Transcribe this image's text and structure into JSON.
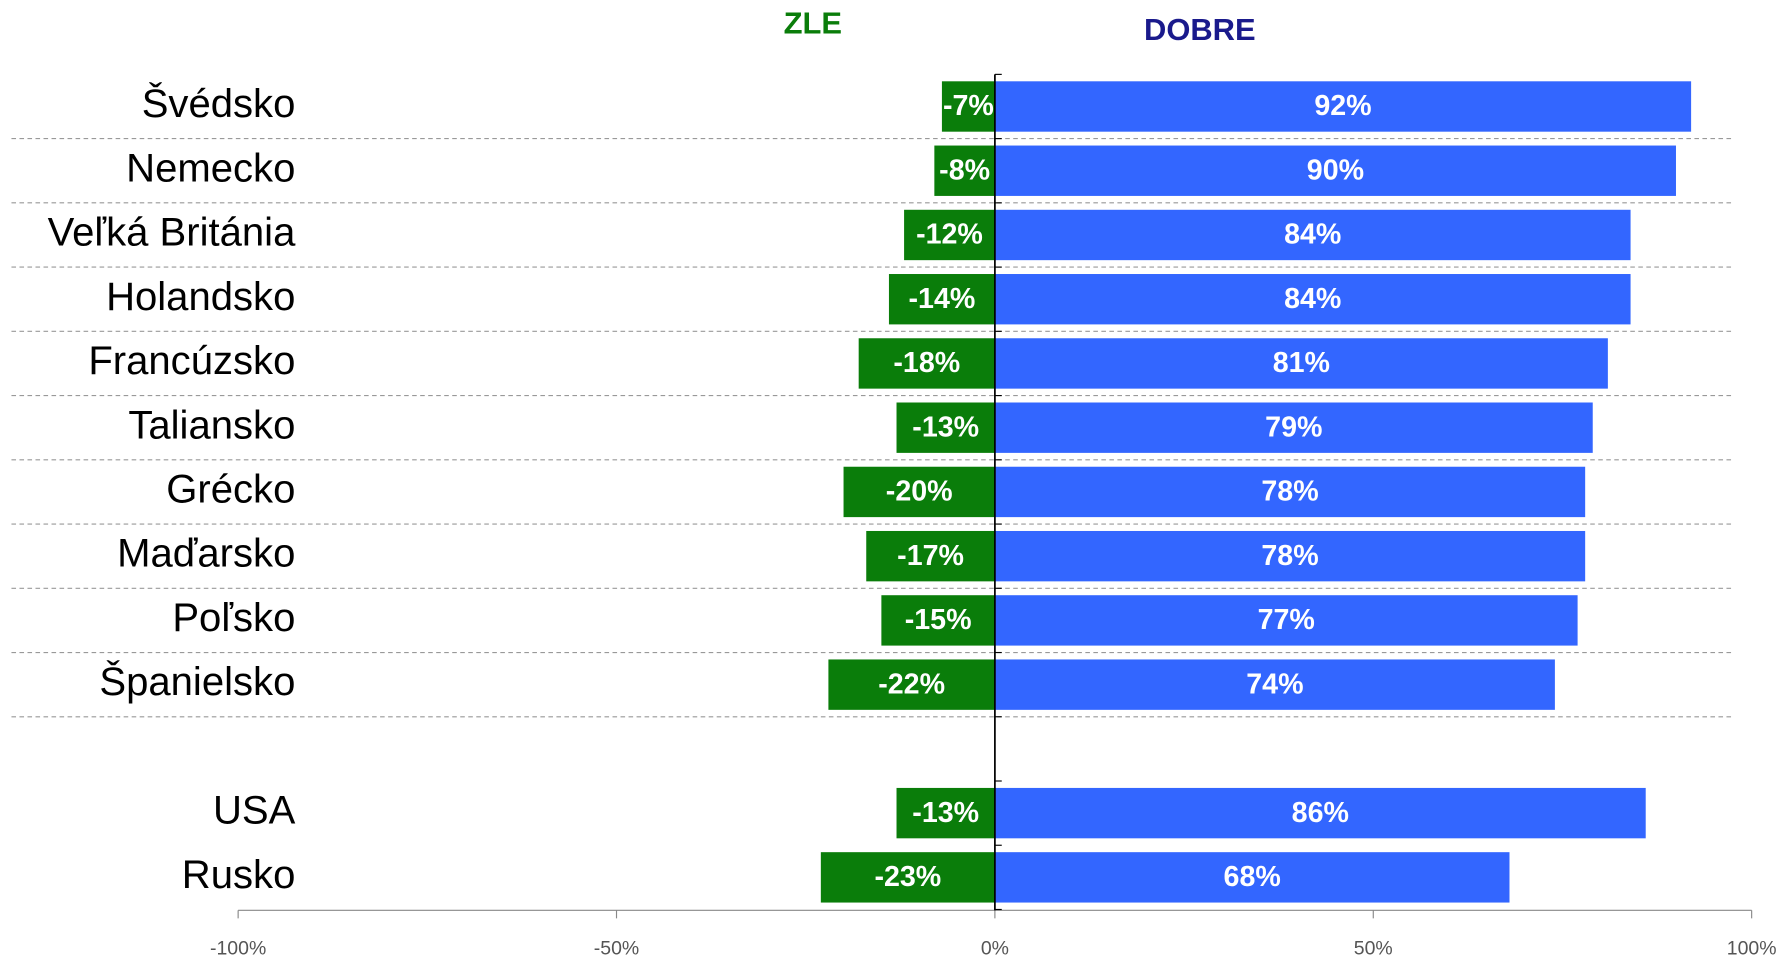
{
  "chart_data": {
    "type": "bar",
    "orientation": "horizontal",
    "stacked": "diverging",
    "categories": [
      "Švédsko",
      "Nemecko",
      "Veľká Británia",
      "Holandsko",
      "Francúzsko",
      "Taliansko",
      "Grécko",
      "Maďarsko",
      "Poľsko",
      "Španielsko",
      null,
      "USA",
      "Rusko"
    ],
    "series": [
      {
        "name": "ZLE",
        "color": "#0a7d0a",
        "values": [
          -7,
          -8,
          -12,
          -14,
          -18,
          -13,
          -20,
          -17,
          -15,
          -22,
          null,
          -13,
          -23
        ],
        "value_labels": [
          "-7%",
          "-8%",
          "-12%",
          "-14%",
          "-18%",
          "-13%",
          "-20%",
          "-17%",
          "-15%",
          "-22%",
          null,
          "-13%",
          "-23%"
        ]
      },
      {
        "name": "DOBRE",
        "color": "#3366ff",
        "values": [
          92,
          90,
          84,
          84,
          81,
          79,
          78,
          78,
          77,
          74,
          null,
          86,
          68
        ],
        "value_labels": [
          "92%",
          "90%",
          "84%",
          "84%",
          "81%",
          "79%",
          "78%",
          "78%",
          "77%",
          "74%",
          null,
          "86%",
          "68%"
        ]
      }
    ],
    "xlim": [
      -100,
      100
    ],
    "xticks": [
      {
        "value": -100,
        "label": "-100%"
      },
      {
        "value": -50,
        "label": "-50%"
      },
      {
        "value": 0,
        "label": "0%"
      },
      {
        "value": 50,
        "label": "50%"
      },
      {
        "value": 100,
        "label": "100%"
      }
    ]
  }
}
